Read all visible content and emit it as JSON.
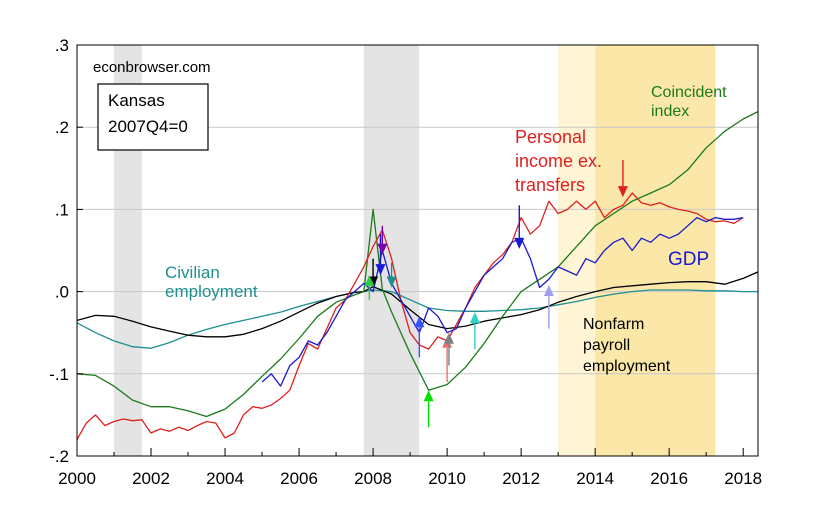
{
  "chart_data": {
    "type": "line",
    "source_label": "econbrowser.com",
    "box_label": [
      "Kansas",
      "2007Q4=0"
    ],
    "xlim": [
      2000,
      2018.4
    ],
    "ylim": [
      -0.2,
      0.3
    ],
    "x_ticks": [
      2000,
      2002,
      2004,
      2006,
      2008,
      2010,
      2012,
      2014,
      2016,
      2018
    ],
    "x_tick_labels": [
      "2000",
      "2002",
      "2004",
      "2006",
      "2008",
      "2010",
      "2012",
      "2014",
      "2016",
      "2018"
    ],
    "y_ticks": [
      -0.2,
      -0.1,
      0.0,
      0.1,
      0.2,
      0.3
    ],
    "y_tick_labels": [
      "-.2",
      "-.1",
      ".0",
      ".1",
      ".2",
      ".3"
    ],
    "grid": "horizontal",
    "recessions": [
      [
        2001.0,
        2001.75
      ],
      [
        2007.75,
        2009.25
      ]
    ],
    "highlight_light": [
      2013.0,
      2014.0
    ],
    "highlight_dark": [
      2014.0,
      2017.25
    ],
    "series": [
      {
        "name": "Civilian employment",
        "label_lines": [
          "Civilian",
          "employment"
        ],
        "color": "#1f8f8f",
        "x": [
          2000,
          2000.5,
          2001,
          2001.5,
          2002,
          2002.5,
          2003,
          2003.5,
          2004,
          2004.5,
          2005,
          2005.5,
          2006,
          2006.5,
          2007,
          2007.5,
          2007.75,
          2008,
          2008.5,
          2009,
          2009.5,
          2010,
          2010.5,
          2011,
          2011.5,
          2012,
          2012.5,
          2013,
          2013.5,
          2014,
          2014.5,
          2015,
          2015.5,
          2016,
          2016.5,
          2017,
          2017.5,
          2018,
          2018.4
        ],
        "y": [
          -0.038,
          -0.05,
          -0.06,
          -0.067,
          -0.069,
          -0.062,
          -0.053,
          -0.046,
          -0.04,
          -0.035,
          -0.03,
          -0.025,
          -0.018,
          -0.012,
          -0.006,
          -0.001,
          0.0,
          0.002,
          0.0,
          -0.01,
          -0.02,
          -0.023,
          -0.024,
          -0.024,
          -0.023,
          -0.022,
          -0.02,
          -0.016,
          -0.012,
          -0.007,
          -0.003,
          0.0,
          0.002,
          0.002,
          0.002,
          0.001,
          0.001,
          0.0,
          0.0
        ]
      },
      {
        "name": "Nonfarm payroll employment",
        "label_lines": [
          "Nonfarm",
          "payroll",
          "employment"
        ],
        "color": "#000000",
        "x": [
          2000,
          2000.5,
          2001,
          2001.5,
          2002,
          2002.5,
          2003,
          2003.5,
          2004,
          2004.5,
          2005,
          2005.5,
          2006,
          2006.5,
          2007,
          2007.5,
          2007.75,
          2008,
          2008.5,
          2009,
          2009.5,
          2010,
          2010.5,
          2011,
          2011.5,
          2012,
          2012.5,
          2013,
          2013.5,
          2014,
          2014.5,
          2015,
          2015.5,
          2016,
          2016.5,
          2017,
          2017.5,
          2018,
          2018.4
        ],
        "y": [
          -0.035,
          -0.029,
          -0.03,
          -0.036,
          -0.043,
          -0.048,
          -0.053,
          -0.055,
          -0.055,
          -0.052,
          -0.045,
          -0.036,
          -0.025,
          -0.014,
          -0.006,
          -0.001,
          0.0,
          0.006,
          -0.003,
          -0.022,
          -0.04,
          -0.045,
          -0.042,
          -0.036,
          -0.032,
          -0.028,
          -0.022,
          -0.013,
          -0.006,
          0.0,
          0.005,
          0.007,
          0.009,
          0.011,
          0.012,
          0.012,
          0.009,
          0.016,
          0.024
        ]
      },
      {
        "name": "Coincident index",
        "label_lines": [
          "Coincident",
          "index"
        ],
        "color": "#1a7a1a",
        "x": [
          2000,
          2000.5,
          2001,
          2001.5,
          2002,
          2002.5,
          2003,
          2003.5,
          2004,
          2004.5,
          2005,
          2005.5,
          2006,
          2006.5,
          2007,
          2007.5,
          2007.75,
          2008,
          2008.25,
          2008.5,
          2009,
          2009.5,
          2010,
          2010.5,
          2011,
          2011.5,
          2012,
          2012.5,
          2013,
          2013.5,
          2014,
          2014.5,
          2015,
          2015.5,
          2016,
          2016.5,
          2017,
          2017.5,
          2018,
          2018.4
        ],
        "y": [
          -0.1,
          -0.102,
          -0.115,
          -0.132,
          -0.14,
          -0.14,
          -0.145,
          -0.152,
          -0.143,
          -0.125,
          -0.103,
          -0.082,
          -0.057,
          -0.03,
          -0.013,
          -0.004,
          0.0,
          0.1,
          0.003,
          -0.025,
          -0.075,
          -0.12,
          -0.113,
          -0.092,
          -0.063,
          -0.03,
          0.0,
          0.015,
          0.03,
          0.055,
          0.08,
          0.095,
          0.11,
          0.12,
          0.13,
          0.148,
          0.175,
          0.195,
          0.21,
          0.219
        ]
      },
      {
        "name": "Personal income ex. transfers",
        "label_lines": [
          "Personal",
          "income ex.",
          "transfers"
        ],
        "color": "#e02020",
        "x": [
          2000,
          2000.25,
          2000.5,
          2000.75,
          2001,
          2001.25,
          2001.5,
          2001.75,
          2002,
          2002.25,
          2002.5,
          2002.75,
          2003,
          2003.25,
          2003.5,
          2003.75,
          2004,
          2004.25,
          2004.5,
          2004.75,
          2005,
          2005.25,
          2005.5,
          2005.75,
          2006,
          2006.25,
          2006.5,
          2006.75,
          2007,
          2007.25,
          2007.5,
          2007.75,
          2008,
          2008.25,
          2008.5,
          2008.75,
          2009,
          2009.25,
          2009.5,
          2009.75,
          2010,
          2010.25,
          2010.5,
          2010.75,
          2011,
          2011.25,
          2011.5,
          2011.75,
          2012,
          2012.25,
          2012.5,
          2012.75,
          2013,
          2013.25,
          2013.5,
          2013.75,
          2014,
          2014.25,
          2014.5,
          2014.75,
          2015,
          2015.25,
          2015.5,
          2015.75,
          2016,
          2016.25,
          2016.5,
          2016.75,
          2017,
          2017.25,
          2017.5,
          2017.75,
          2018
        ],
        "y": [
          -0.18,
          -0.16,
          -0.15,
          -0.163,
          -0.158,
          -0.155,
          -0.157,
          -0.156,
          -0.172,
          -0.167,
          -0.17,
          -0.165,
          -0.169,
          -0.163,
          -0.158,
          -0.16,
          -0.178,
          -0.172,
          -0.15,
          -0.14,
          -0.142,
          -0.138,
          -0.13,
          -0.12,
          -0.09,
          -0.063,
          -0.07,
          -0.045,
          -0.02,
          -0.01,
          0.01,
          0.03,
          0.055,
          0.075,
          0.04,
          -0.01,
          -0.05,
          -0.065,
          -0.07,
          -0.055,
          -0.06,
          -0.04,
          -0.02,
          0.005,
          0.02,
          0.035,
          0.045,
          0.06,
          0.09,
          0.07,
          0.08,
          0.11,
          0.095,
          0.1,
          0.11,
          0.1,
          0.11,
          0.09,
          0.1,
          0.105,
          0.12,
          0.108,
          0.105,
          0.108,
          0.103,
          0.1,
          0.098,
          0.095,
          0.088,
          0.085,
          0.086,
          0.083,
          0.09
        ]
      },
      {
        "name": "GDP",
        "label_lines": [
          "GDP"
        ],
        "color": "#1a1ad0",
        "x": [
          2005,
          2005.25,
          2005.5,
          2005.75,
          2006,
          2006.25,
          2006.5,
          2006.75,
          2007,
          2007.25,
          2007.5,
          2007.75,
          2008,
          2008.25,
          2008.5,
          2008.75,
          2009,
          2009.25,
          2009.5,
          2009.75,
          2010,
          2010.25,
          2010.5,
          2010.75,
          2011,
          2011.25,
          2011.5,
          2011.75,
          2012,
          2012.25,
          2012.5,
          2012.75,
          2013,
          2013.25,
          2013.5,
          2013.75,
          2014,
          2014.25,
          2014.5,
          2014.75,
          2015,
          2015.25,
          2015.5,
          2015.75,
          2016,
          2016.25,
          2016.5,
          2016.75,
          2017,
          2017.25,
          2017.5,
          2017.75,
          2018
        ],
        "y": [
          -0.11,
          -0.1,
          -0.115,
          -0.09,
          -0.08,
          -0.06,
          -0.065,
          -0.05,
          -0.03,
          -0.01,
          0.0,
          0.01,
          0.0,
          0.05,
          0.01,
          -0.01,
          -0.03,
          -0.05,
          -0.02,
          -0.03,
          -0.05,
          -0.045,
          -0.02,
          0.0,
          0.02,
          0.03,
          0.04,
          0.06,
          0.065,
          0.04,
          0.005,
          0.015,
          0.03,
          0.025,
          0.02,
          0.04,
          0.035,
          0.05,
          0.06,
          0.065,
          0.05,
          0.065,
          0.06,
          0.07,
          0.065,
          0.07,
          0.08,
          0.09,
          0.085,
          0.09,
          0.088,
          0.088,
          0.09
        ]
      }
    ],
    "arrows": [
      {
        "color": "#e02020",
        "x": 2014.75,
        "y_tail": 0.16,
        "y_head": 0.115,
        "direction": "down"
      },
      {
        "color": "#1a1ad0",
        "x": 2011.95,
        "y_tail": 0.105,
        "y_head": 0.052,
        "direction": "down"
      },
      {
        "color": "#9f9fef",
        "x": 2012.75,
        "y_tail": -0.045,
        "y_head": 0.008,
        "direction": "up"
      },
      {
        "color": "#1a1ad0",
        "x": 2008.2,
        "y_tail": 0.07,
        "y_head": 0.02,
        "direction": "down"
      },
      {
        "color": "#7a00aa",
        "x": 2008.25,
        "y_tail": 0.08,
        "y_head": 0.045,
        "direction": "down"
      },
      {
        "color": "#000000",
        "x": 2008.0,
        "y_tail": 0.04,
        "y_head": 0.005,
        "direction": "down"
      },
      {
        "color": "#1f8f8f",
        "x": 2008.5,
        "y_tail": 0.035,
        "y_head": 0.005,
        "direction": "down"
      },
      {
        "color": "#2ecc40",
        "x": 2007.9,
        "y_tail": -0.01,
        "y_head": 0.02,
        "direction": "up"
      },
      {
        "color": "#3355ff",
        "x": 2009.25,
        "y_tail": -0.08,
        "y_head": -0.03,
        "direction": "up"
      },
      {
        "color": "#e87070",
        "x": 2010.0,
        "y_tail": -0.11,
        "y_head": -0.055,
        "direction": "up"
      },
      {
        "color": "#808080",
        "x": 2010.05,
        "y_tail": -0.09,
        "y_head": -0.05,
        "direction": "up"
      },
      {
        "color": "#2dd4c4",
        "x": 2010.75,
        "y_tail": -0.07,
        "y_head": -0.025,
        "direction": "up"
      },
      {
        "color": "#00e000",
        "x": 2009.5,
        "y_tail": -0.165,
        "y_head": -0.12,
        "direction": "up"
      }
    ]
  }
}
